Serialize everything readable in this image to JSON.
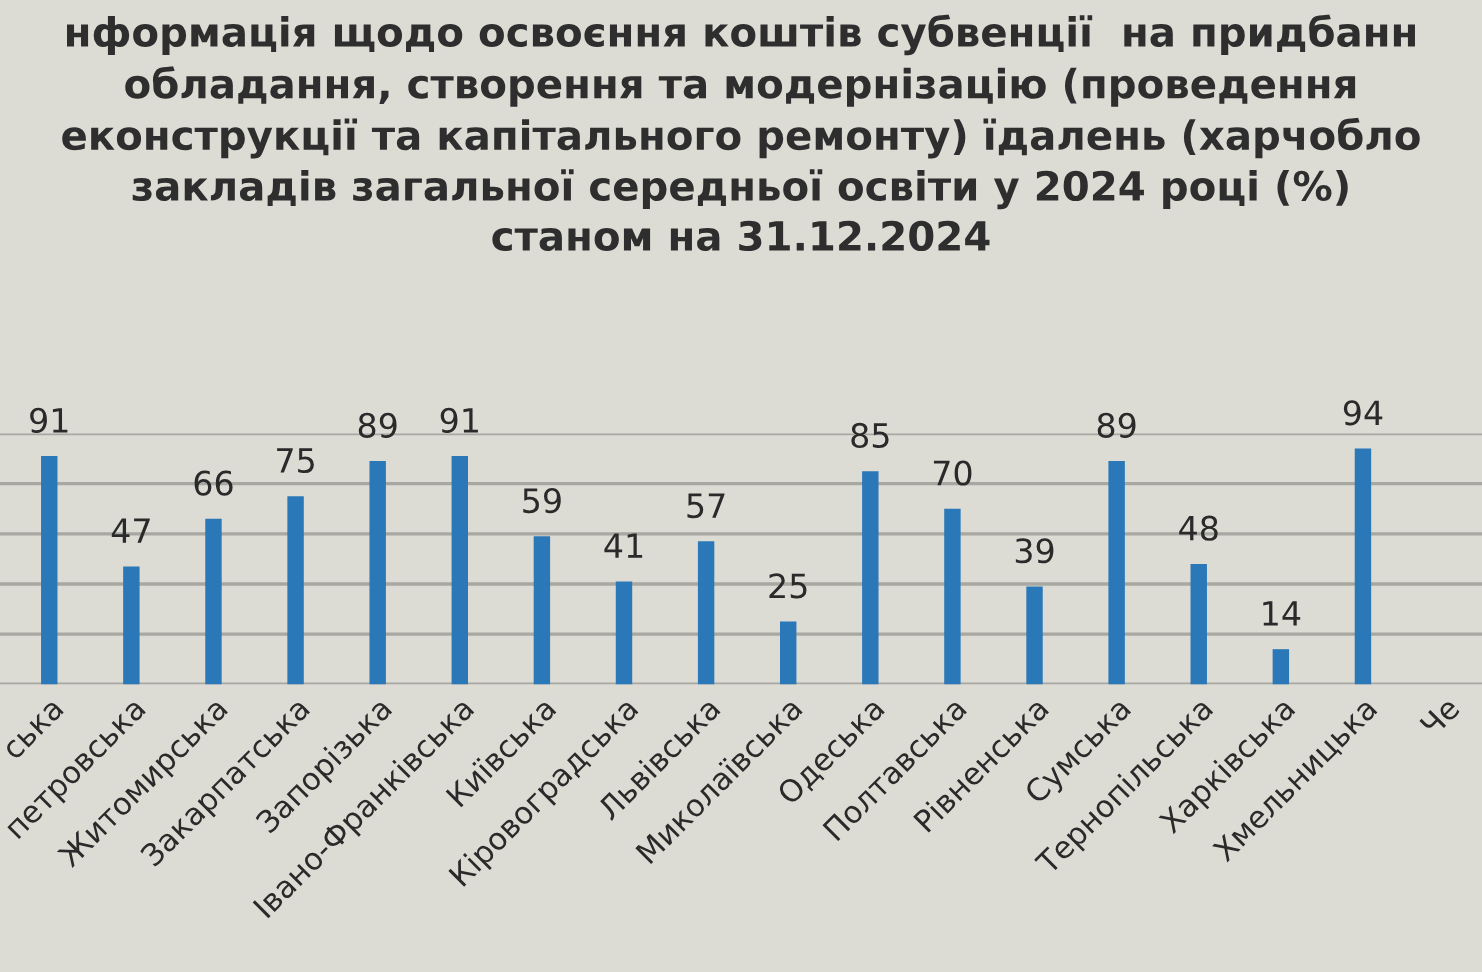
{
  "chart_data": {
    "type": "bar",
    "title": "нформація щодо освоєння коштів субвенції  на придбанн\nобладання, створення та модернізацію (проведення\nеконструкції та капітального ремонту) їдалень (харчобло\nзакладів загальної середньої освіти у 2024 році (%)\nстаном на 31.12.2024",
    "categories": [
      "ська",
      "петровська",
      "Житомирська",
      "Закарпатська",
      "Запорізька",
      "Івано-Франківська",
      "Київська",
      "Кіровоградська",
      "Львівська",
      "Миколаївська",
      "Одеська",
      "Полтавська",
      "Рівненська",
      "Сумська",
      "Тернопільська",
      "Харківська",
      "Хмельницька",
      "Че"
    ],
    "values": [
      91,
      47,
      66,
      75,
      89,
      91,
      59,
      41,
      57,
      25,
      85,
      70,
      39,
      89,
      48,
      14,
      94,
      null
    ],
    "color": "#2b78b8",
    "ylim": [
      0,
      100
    ],
    "yticks": [
      {
        "value": 0,
        "label": null
      },
      {
        "value": 20,
        "label": null
      },
      {
        "value": 40,
        "label": null
      },
      {
        "value": 60,
        "label": null
      },
      {
        "value": 80,
        "label": null
      },
      {
        "value": 100,
        "label": null
      }
    ],
    "grid": "y",
    "tick_labels": "x",
    "data_labels": true,
    "legend": false
  }
}
